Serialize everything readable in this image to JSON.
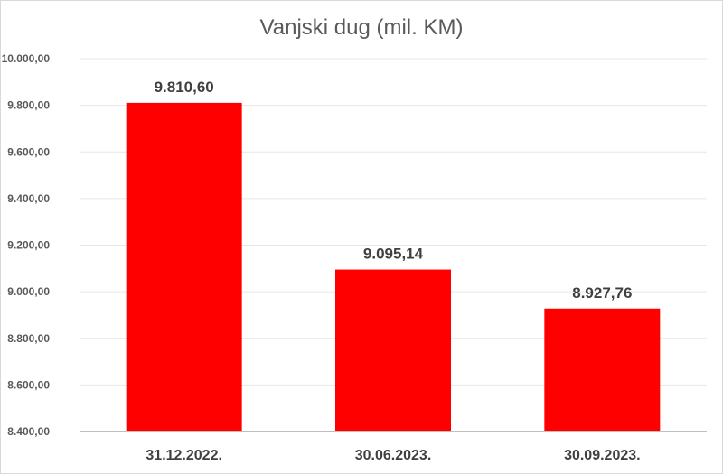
{
  "chart_data": {
    "type": "bar",
    "title": "Vanjski dug (mil. KM)",
    "categories": [
      "31.12.2022.",
      "30.06.2023.",
      "30.09.2023."
    ],
    "values": [
      9810.6,
      9095.14,
      8927.76
    ],
    "data_labels": [
      "9.810,60",
      "9.095,14",
      "8.927,76"
    ],
    "ylim": [
      8400,
      10000
    ],
    "yticks": [
      8400,
      8600,
      8800,
      9000,
      9200,
      9400,
      9600,
      9800,
      10000
    ],
    "ytick_labels": [
      "8.400,00",
      "8.600,00",
      "8.800,00",
      "9.000,00",
      "9.200,00",
      "9.400,00",
      "9.600,00",
      "9.800,00",
      "10.000,00"
    ],
    "grid": true,
    "legend": "none",
    "colors": {
      "bar": "#ff0000",
      "grid": "#e6e6e6",
      "axis": "#bfbfbf"
    }
  }
}
